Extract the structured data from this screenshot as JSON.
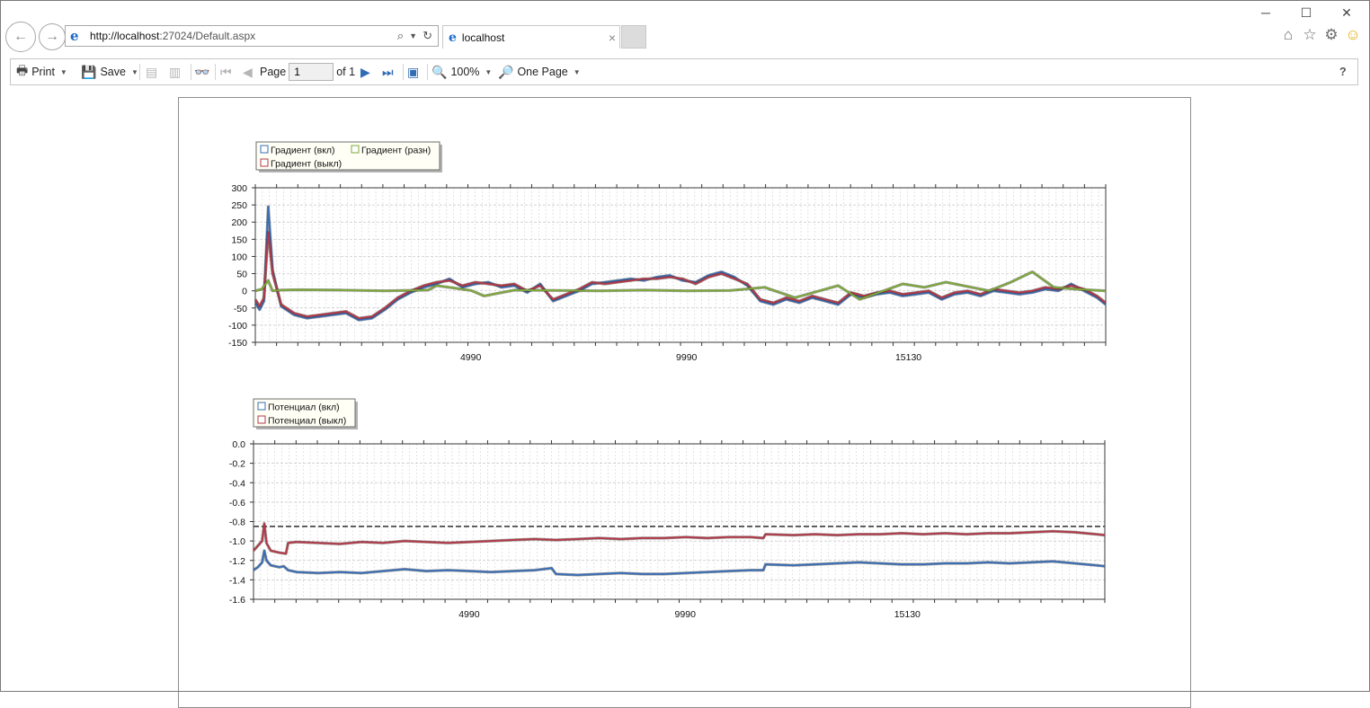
{
  "browser": {
    "url_host": "http://localhost",
    "url_rest": ":27024/Default.aspx",
    "tab_title": "localhost",
    "tab_close": "×",
    "back_glyph": "←",
    "forward_glyph": "→",
    "minimize_glyph": "─",
    "maximize_glyph": "☐",
    "close_glyph": "✕",
    "icons": [
      "home-icon",
      "favorites-star-icon",
      "settings-gear-icon",
      "feedback-smiley-icon"
    ]
  },
  "toolbar": {
    "print_label": "Print",
    "save_label": "Save",
    "page_label": "Page",
    "page_value": "1",
    "of_label": "of 1",
    "zoom_label": "100%",
    "view_mode_label": "One Page",
    "help_label": "?"
  },
  "colors": {
    "on": "#3b6eb5",
    "off": "#b23a48",
    "diff": "#7ea83a",
    "grid": "#c8c8c8",
    "ref_line": "#4a4a4a"
  },
  "chart_data": [
    {
      "type": "line",
      "title": "",
      "legend": [
        "Градиент (вкл)",
        "Градиент (разн)",
        "Градиент (выкл)"
      ],
      "x_tick_labels": [
        "4990",
        "9990",
        "15130"
      ],
      "x_ticks": [
        4990,
        9990,
        15130
      ],
      "xlim": [
        0,
        19700
      ],
      "ylim": [
        -150,
        300
      ],
      "y_ticks": [
        300,
        250,
        200,
        150,
        100,
        50,
        0,
        -50,
        -100,
        -150
      ],
      "series": [
        {
          "name": "Градиент (вкл)",
          "color": "#3b6eb5",
          "x": [
            0,
            100,
            200,
            300,
            400,
            600,
            900,
            1200,
            1500,
            1800,
            2100,
            2400,
            2700,
            3000,
            3300,
            3600,
            3900,
            4200,
            4500,
            4800,
            5100,
            5400,
            5700,
            6000,
            6300,
            6600,
            6900,
            7200,
            7500,
            7800,
            8100,
            8400,
            8700,
            9000,
            9300,
            9600,
            9900,
            10200,
            10500,
            10800,
            11100,
            11400,
            11700,
            12000,
            12300,
            12600,
            12900,
            13200,
            13500,
            13800,
            14100,
            14400,
            14700,
            15000,
            15300,
            15600,
            15900,
            16200,
            16500,
            16800,
            17100,
            17400,
            17700,
            18000,
            18300,
            18600,
            18900,
            19200,
            19500,
            19700
          ],
          "y": [
            -35,
            -55,
            -30,
            245,
            60,
            -45,
            -70,
            -80,
            -75,
            -70,
            -65,
            -85,
            -80,
            -55,
            -25,
            -5,
            10,
            20,
            35,
            10,
            20,
            25,
            10,
            15,
            -5,
            20,
            -30,
            -15,
            0,
            20,
            25,
            30,
            35,
            30,
            40,
            45,
            30,
            25,
            45,
            55,
            40,
            15,
            -30,
            -40,
            -25,
            -35,
            -20,
            -30,
            -40,
            -10,
            -20,
            -10,
            -5,
            -15,
            -10,
            -5,
            -25,
            -10,
            -5,
            -15,
            0,
            -5,
            -10,
            -5,
            5,
            0,
            20,
            0,
            -20,
            -40
          ]
        },
        {
          "name": "Градиент (выкл)",
          "color": "#b23a48",
          "x": [
            0,
            100,
            200,
            300,
            400,
            600,
            900,
            1200,
            1500,
            1800,
            2100,
            2400,
            2700,
            3000,
            3300,
            3600,
            3900,
            4200,
            4500,
            4800,
            5100,
            5400,
            5700,
            6000,
            6300,
            6600,
            6900,
            7200,
            7500,
            7800,
            8100,
            8400,
            8700,
            9000,
            9300,
            9600,
            9900,
            10200,
            10500,
            10800,
            11100,
            11400,
            11700,
            12000,
            12300,
            12600,
            12900,
            13200,
            13500,
            13800,
            14100,
            14400,
            14700,
            15000,
            15300,
            15600,
            15900,
            16200,
            16500,
            16800,
            17100,
            17400,
            17700,
            18000,
            18300,
            18600,
            18900,
            19200,
            19500,
            19700
          ],
          "y": [
            -25,
            -45,
            -20,
            170,
            50,
            -40,
            -65,
            -75,
            -70,
            -65,
            -60,
            -80,
            -75,
            -50,
            -20,
            0,
            15,
            25,
            30,
            15,
            25,
            20,
            15,
            20,
            0,
            15,
            -25,
            -10,
            5,
            25,
            20,
            25,
            30,
            35,
            35,
            40,
            35,
            20,
            40,
            50,
            35,
            20,
            -25,
            -35,
            -20,
            -30,
            -15,
            -25,
            -35,
            -5,
            -15,
            -5,
            0,
            -10,
            -5,
            0,
            -20,
            -5,
            0,
            -10,
            5,
            0,
            -5,
            0,
            10,
            5,
            15,
            5,
            -15,
            -35
          ]
        },
        {
          "name": "Градиент (разн)",
          "color": "#7ea83a",
          "x": [
            0,
            150,
            300,
            400,
            600,
            1000,
            2000,
            3000,
            4000,
            4200,
            5000,
            5300,
            6000,
            7000,
            8000,
            9000,
            10000,
            11000,
            11800,
            12500,
            13500,
            14000,
            15000,
            15500,
            16000,
            17000,
            17500,
            18000,
            18500,
            19000,
            19700
          ],
          "y": [
            0,
            5,
            30,
            0,
            2,
            3,
            2,
            0,
            2,
            15,
            1,
            -15,
            2,
            1,
            0,
            2,
            0,
            1,
            10,
            -20,
            15,
            -25,
            20,
            10,
            25,
            0,
            25,
            55,
            10,
            5,
            0
          ]
        }
      ]
    },
    {
      "type": "line",
      "title": "",
      "legend": [
        "Потенциал (вкл)",
        "Потенциал (выкл)"
      ],
      "x_tick_labels": [
        "4990",
        "9990",
        "15130"
      ],
      "x_ticks": [
        4990,
        9990,
        15130
      ],
      "xlim": [
        0,
        19700
      ],
      "ylim": [
        -1.6,
        0.0
      ],
      "y_ticks": [
        0.0,
        -0.2,
        -0.4,
        -0.6,
        -0.8,
        -1.0,
        -1.2,
        -1.4,
        -1.6
      ],
      "reference_line": -0.85,
      "series": [
        {
          "name": "Потенциал (вкл)",
          "color": "#3b6eb5",
          "x": [
            0,
            100,
            200,
            250,
            300,
            400,
            600,
            700,
            800,
            1000,
            1500,
            2000,
            2500,
            3000,
            3500,
            4000,
            4500,
            5000,
            5500,
            6000,
            6500,
            6900,
            7000,
            7500,
            8000,
            8500,
            9000,
            9500,
            10000,
            10500,
            11000,
            11500,
            11800,
            11850,
            12500,
            13000,
            13500,
            14000,
            14500,
            15000,
            15500,
            16000,
            16500,
            17000,
            17500,
            18000,
            18500,
            19000,
            19500,
            19700
          ],
          "y": [
            -1.3,
            -1.27,
            -1.22,
            -1.1,
            -1.2,
            -1.25,
            -1.27,
            -1.26,
            -1.3,
            -1.32,
            -1.33,
            -1.32,
            -1.33,
            -1.31,
            -1.29,
            -1.31,
            -1.3,
            -1.31,
            -1.32,
            -1.31,
            -1.3,
            -1.28,
            -1.34,
            -1.35,
            -1.34,
            -1.33,
            -1.34,
            -1.34,
            -1.33,
            -1.32,
            -1.31,
            -1.3,
            -1.3,
            -1.24,
            -1.25,
            -1.24,
            -1.23,
            -1.22,
            -1.23,
            -1.24,
            -1.24,
            -1.23,
            -1.23,
            -1.22,
            -1.23,
            -1.22,
            -1.21,
            -1.23,
            -1.25,
            -1.26
          ]
        },
        {
          "name": "Потенциал (выкл)",
          "color": "#b23a48",
          "x": [
            0,
            100,
            200,
            250,
            300,
            400,
            600,
            750,
            800,
            1000,
            1500,
            2000,
            2500,
            3000,
            3500,
            4000,
            4500,
            5000,
            5500,
            6000,
            6500,
            7000,
            7500,
            8000,
            8500,
            9000,
            9500,
            10000,
            10500,
            11000,
            11500,
            11800,
            11850,
            12500,
            13000,
            13500,
            14000,
            14500,
            15000,
            15500,
            16000,
            16500,
            17000,
            17500,
            18000,
            18500,
            19000,
            19500,
            19700
          ],
          "y": [
            -1.1,
            -1.05,
            -1.0,
            -0.82,
            -1.02,
            -1.1,
            -1.12,
            -1.13,
            -1.02,
            -1.01,
            -1.02,
            -1.03,
            -1.01,
            -1.02,
            -1.0,
            -1.01,
            -1.02,
            -1.01,
            -1.0,
            -0.99,
            -0.98,
            -0.99,
            -0.98,
            -0.97,
            -0.98,
            -0.97,
            -0.97,
            -0.96,
            -0.97,
            -0.96,
            -0.96,
            -0.97,
            -0.93,
            -0.94,
            -0.93,
            -0.94,
            -0.93,
            -0.93,
            -0.92,
            -0.93,
            -0.92,
            -0.93,
            -0.92,
            -0.92,
            -0.91,
            -0.9,
            -0.91,
            -0.93,
            -0.94
          ]
        }
      ]
    }
  ]
}
